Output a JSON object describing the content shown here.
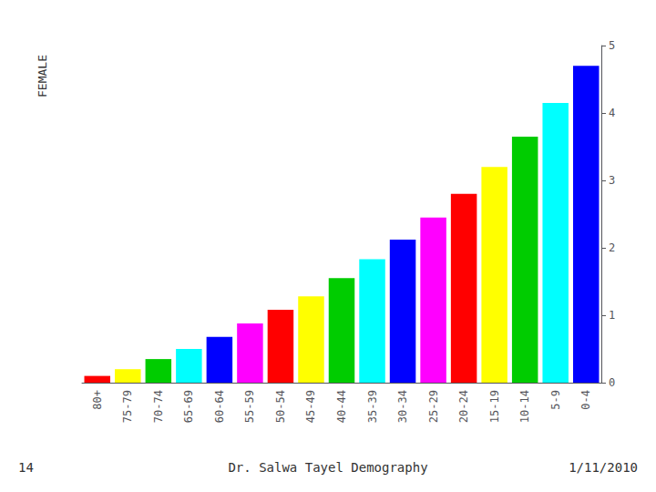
{
  "chart_data": {
    "type": "bar",
    "ylabel": "FEMALE",
    "categories": [
      "80+",
      "75-79",
      "70-74",
      "65-69",
      "60-64",
      "55-59",
      "50-54",
      "45-49",
      "40-44",
      "35-39",
      "30-34",
      "25-29",
      "20-24",
      "15-19",
      "10-14",
      "5-9",
      "0-4"
    ],
    "values": [
      0.1,
      0.2,
      0.35,
      0.5,
      0.68,
      0.88,
      1.08,
      1.28,
      1.55,
      1.83,
      2.12,
      2.45,
      2.8,
      3.2,
      3.65,
      4.15,
      4.7
    ],
    "colors": [
      "#ff0000",
      "#ffff00",
      "#00cc00",
      "#00ffff",
      "#0000ff",
      "#ff00ff",
      "#ff0000",
      "#ffff00",
      "#00cc00",
      "#00ffff",
      "#0000ff",
      "#ff00ff",
      "#ff0000",
      "#ffff00",
      "#00cc00",
      "#00ffff",
      "#0000ff"
    ],
    "ylim": [
      0,
      5
    ],
    "yticks": [
      0,
      1,
      2,
      3,
      4,
      5
    ],
    "grid": false,
    "annotations": [
      "14",
      "Dr. Salwa Tayel Demography",
      "1/11/2010"
    ]
  }
}
